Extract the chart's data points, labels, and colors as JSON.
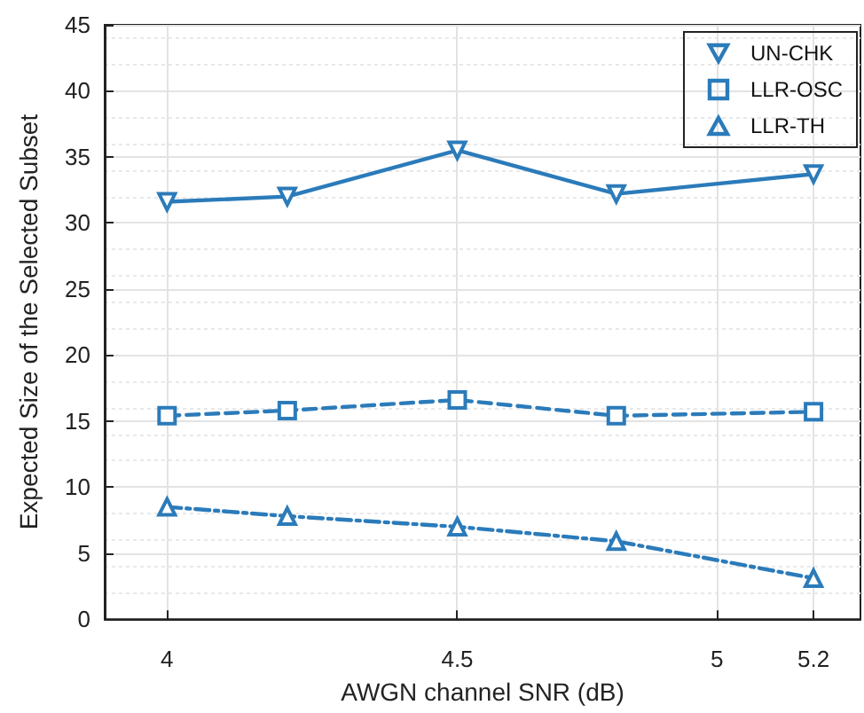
{
  "chart_data": {
    "type": "line",
    "xlabel": "AWGN channel SNR (dB)",
    "ylabel": "Expected Size of the Selected Subset",
    "x": [
      4,
      4.2,
      4.5,
      4.8,
      5.2
    ],
    "series": [
      {
        "name": "UN-CHK",
        "color": "#2b7bba",
        "marker": "triangle-down",
        "line_style": "solid",
        "values": [
          31.6,
          32.0,
          35.5,
          32.2,
          33.7
        ]
      },
      {
        "name": "LLR-OSC",
        "color": "#2b7bba",
        "marker": "square",
        "line_style": "dashed",
        "values": [
          15.4,
          15.8,
          16.6,
          15.4,
          15.7
        ]
      },
      {
        "name": "LLR-TH",
        "color": "#2b7bba",
        "marker": "triangle",
        "line_style": "dashdot",
        "values": [
          8.5,
          7.8,
          7.0,
          5.9,
          3.1
        ]
      }
    ],
    "log": "x",
    "xlim": [
      3.9,
      5.3
    ],
    "xticks": [
      4,
      4.5,
      5,
      5.2
    ],
    "ylim": [
      0,
      45
    ],
    "yticks": [
      0,
      5,
      10,
      15,
      20,
      25,
      30,
      35,
      40,
      45
    ],
    "grid": true,
    "legend": "top right"
  }
}
